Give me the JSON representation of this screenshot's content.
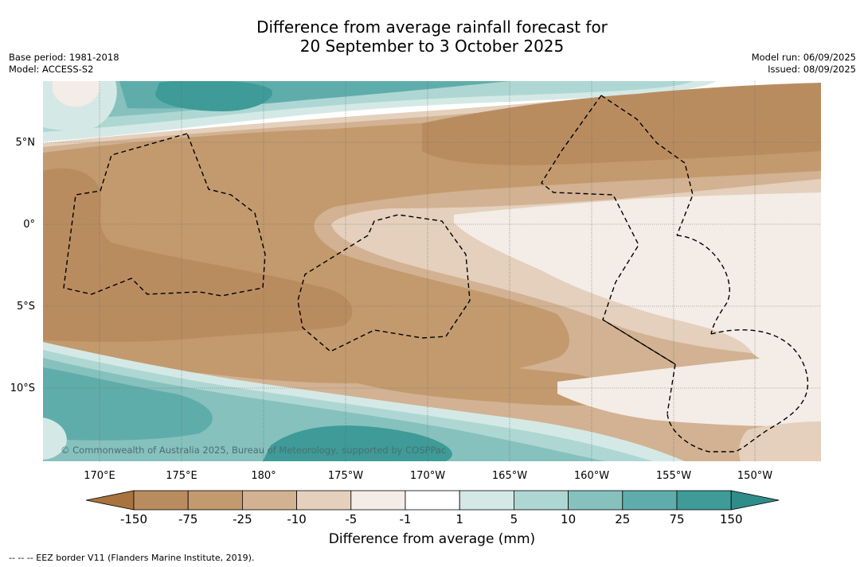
{
  "title": {
    "line1": "Difference from average rainfall forecast for",
    "line2": "20 September to 3 October 2025"
  },
  "meta": {
    "base_period": "Base period: 1981-2018",
    "model": "Model: ACCESS-S2",
    "model_run": "Model run: 06/09/2025",
    "issued": "Issued: 08/09/2025"
  },
  "map": {
    "lon_labels": [
      "170°E",
      "175°E",
      "180°",
      "175°W",
      "170°W",
      "165°W",
      "160°W",
      "155°W",
      "150°W"
    ],
    "lat_labels": [
      "5°N",
      "0°",
      "5°S",
      "10°S"
    ],
    "copyright": "© Commonwealth of Australia 2025, Bureau of Meteorology, supported by COSPPac",
    "gridlines": true,
    "overlay": "EEZ boundaries (dashed) and island coastlines"
  },
  "legend": {
    "ticks": [
      "-150",
      "-75",
      "-25",
      "-10",
      "-5",
      "-1",
      "1",
      "5",
      "10",
      "25",
      "75",
      "150"
    ],
    "colors": [
      "#a8733f",
      "#b98c60",
      "#c29a6e",
      "#d2b292",
      "#e4d0bc",
      "#f4ece6",
      "#ffffff",
      "#d4e9e6",
      "#aed7d3",
      "#86c1bd",
      "#5fadab",
      "#3e9b97",
      "#2e8d89"
    ],
    "label": "Difference from average (mm)"
  },
  "footnote": "--  --  -- EEZ border V11 (Flanders Marine Institute, 2019)."
}
